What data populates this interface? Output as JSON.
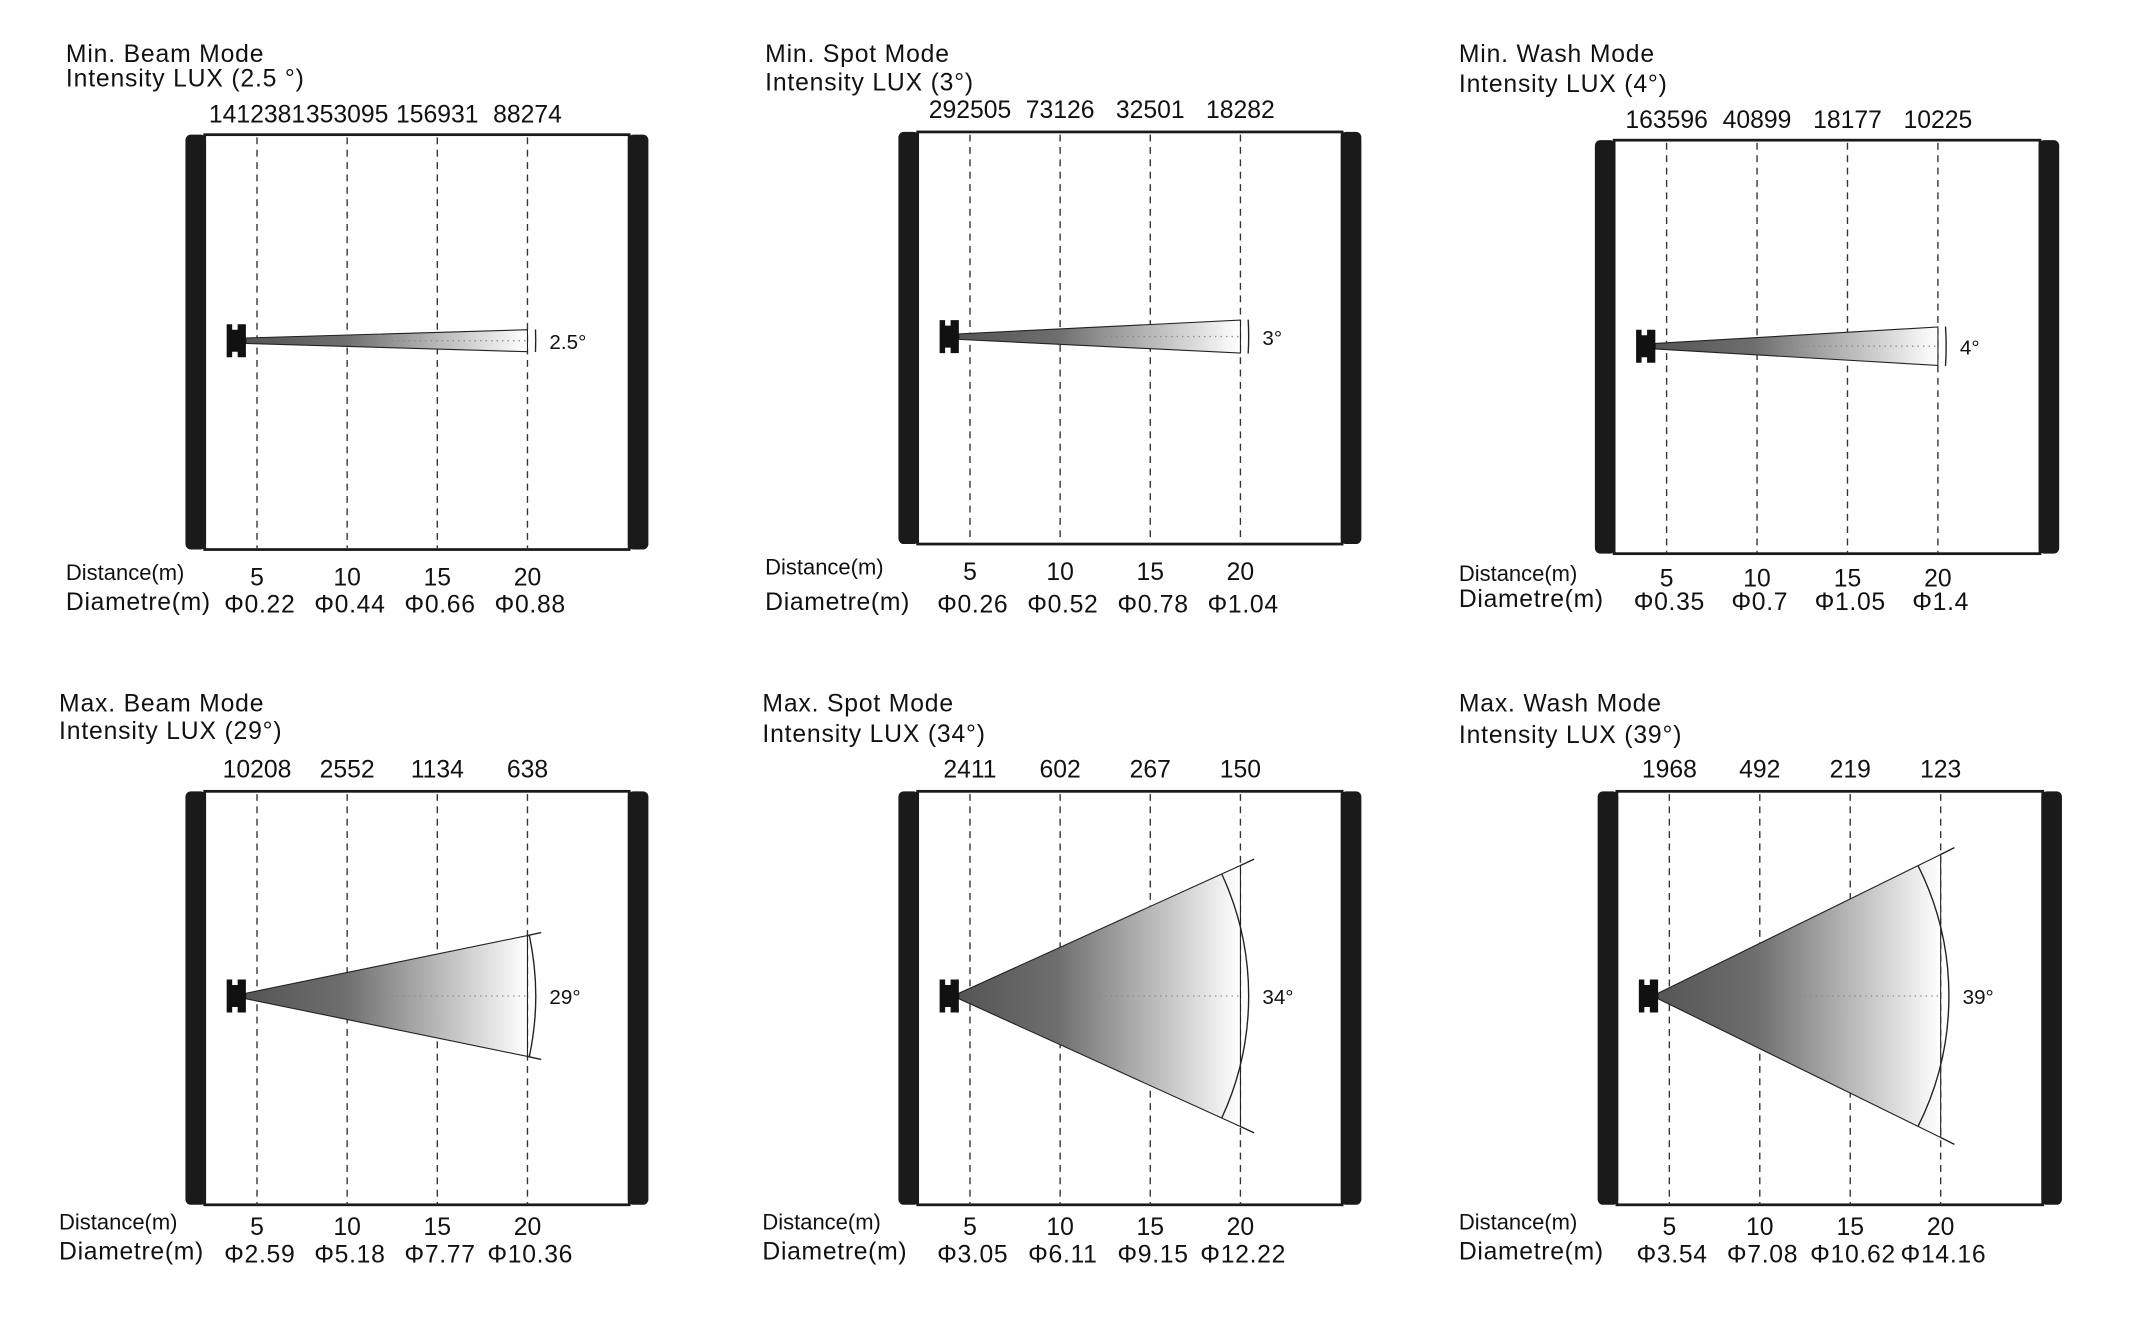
{
  "labels": {
    "distance": "Distance(m)",
    "diameter": "Diametre(m)"
  },
  "colors": {
    "frame": "#1a1a1a",
    "beam_start": "#555555",
    "beam_end": "#ffffff"
  },
  "panels": [
    {
      "mode": "Min. Beam Mode",
      "intensity_title": "Intensity LUX (2.5 °)",
      "angle_label": "2.5°",
      "angle": 2.5,
      "distances": [
        "5",
        "10",
        "15",
        "20"
      ],
      "lux": [
        "1412381",
        "353095",
        "156931",
        "88274"
      ],
      "diameters": [
        "Φ0.22",
        "Φ0.44",
        "Φ0.66",
        "Φ0.88"
      ]
    },
    {
      "mode": "Min. Spot Mode",
      "intensity_title": "Intensity LUX (3°)",
      "angle_label": "3°",
      "angle": 3,
      "distances": [
        "5",
        "10",
        "15",
        "20"
      ],
      "lux": [
        "292505",
        "73126",
        "32501",
        "18282"
      ],
      "diameters": [
        "Φ0.26",
        "Φ0.52",
        "Φ0.78",
        "Φ1.04"
      ]
    },
    {
      "mode": "Min. Wash Mode",
      "intensity_title": "Intensity LUX (4°)",
      "angle_label": "4°",
      "angle": 4,
      "distances": [
        "5",
        "10",
        "15",
        "20"
      ],
      "lux": [
        "163596",
        "40899",
        "18177",
        "10225"
      ],
      "diameters": [
        "Φ0.35",
        "Φ0.7",
        "Φ1.05",
        "Φ1.4"
      ]
    },
    {
      "mode": "Max. Beam Mode",
      "intensity_title": "Intensity LUX (29°)",
      "angle_label": "29°",
      "angle": 29,
      "distances": [
        "5",
        "10",
        "15",
        "20"
      ],
      "lux": [
        "10208",
        "2552",
        "1134",
        "638"
      ],
      "diameters": [
        "Φ2.59",
        "Φ5.18",
        "Φ7.77",
        "Φ10.36"
      ]
    },
    {
      "mode": "Max. Spot Mode",
      "intensity_title": "Intensity LUX (34°)",
      "angle_label": "34°",
      "angle": 34,
      "distances": [
        "5",
        "10",
        "15",
        "20"
      ],
      "lux": [
        "2411",
        "602",
        "267",
        "150"
      ],
      "diameters": [
        "Φ3.05",
        "Φ6.11",
        "Φ9.15",
        "Φ12.22"
      ]
    },
    {
      "mode": "Max. Wash Mode",
      "intensity_title": "Intensity LUX (39°)",
      "angle_label": "39°",
      "angle": 39,
      "distances": [
        "5",
        "10",
        "15",
        "20"
      ],
      "lux": [
        "1968",
        "492",
        "219",
        "123"
      ],
      "diameters": [
        "Φ3.54",
        "Φ7.08",
        "Φ10.62",
        "Φ14.16"
      ]
    }
  ]
}
